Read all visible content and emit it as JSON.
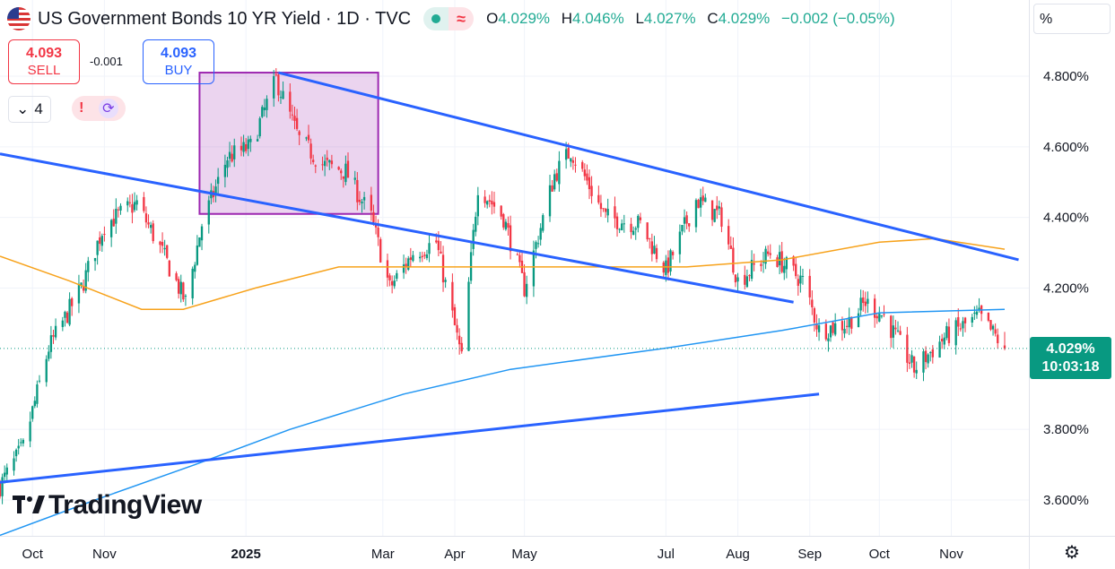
{
  "header": {
    "title": "US Government Bonds 10 YR Yield · 1D · TVC",
    "ohlc": [
      {
        "key": "O",
        "value": "4.029%"
      },
      {
        "key": "H",
        "value": "4.046%"
      },
      {
        "key": "L",
        "value": "4.027%"
      },
      {
        "key": "C",
        "value": "4.029%"
      }
    ],
    "change": "−0.002 (−0.05%)",
    "flag_icon": "us-flag-icon",
    "market_status_icon": "market-open-dot-icon",
    "delayed_icon": "approx-icon"
  },
  "trade": {
    "sell_price": "4.093",
    "sell_label": "SELL",
    "buy_price": "4.093",
    "buy_label": "BUY",
    "spread": "-0.001"
  },
  "indicators": {
    "collapse_count": "4",
    "chevron_icon": "chevron-down-icon",
    "alert_icon": "exclamation-icon",
    "refresh_icon": "refresh-icon"
  },
  "price_axis": {
    "unit_label": "%"
  },
  "last_price": {
    "value": "4.029%",
    "countdown": "10:03:18"
  },
  "logo_text": "TradingView",
  "settings_icon": "settings-icon",
  "colors": {
    "up": "#089981",
    "down": "#f23645",
    "ma_orange": "#f7a21b",
    "ma_blue": "#2196f3",
    "trendline": "#2962ff",
    "box_border": "#9c27b0",
    "box_fill": "rgba(156,39,176,0.2)"
  },
  "chart_data": {
    "type": "candlestick",
    "title": "",
    "xlabel": "",
    "ylabel": "",
    "y_unit": "%",
    "ylim": [
      3.48,
      4.92
    ],
    "x_range": [
      "2024-09-17",
      "2025-11-24"
    ],
    "x_ticks": [
      {
        "date": "2024-10-01",
        "label": "Oct"
      },
      {
        "date": "2024-11-01",
        "label": "Nov"
      },
      {
        "date": "2025-01-01",
        "label": "2025",
        "bold": true
      },
      {
        "date": "2025-03-01",
        "label": "Mar"
      },
      {
        "date": "2025-04-01",
        "label": "Apr"
      },
      {
        "date": "2025-05-01",
        "label": "May"
      },
      {
        "date": "2025-07-01",
        "label": "Jul"
      },
      {
        "date": "2025-08-01",
        "label": "Aug"
      },
      {
        "date": "2025-09-01",
        "label": "Sep"
      },
      {
        "date": "2025-10-01",
        "label": "Oct"
      },
      {
        "date": "2025-11-01",
        "label": "Nov"
      }
    ],
    "y_ticks": [
      {
        "value": 4.8,
        "label": "4.800%"
      },
      {
        "value": 4.6,
        "label": "4.600%"
      },
      {
        "value": 4.4,
        "label": "4.400%"
      },
      {
        "value": 4.2,
        "label": "4.200%"
      },
      {
        "value": 3.8,
        "label": "3.800%"
      },
      {
        "value": 3.6,
        "label": "3.600%"
      }
    ],
    "last_value": 4.029,
    "close_anchors": [
      [
        "2024-09-17",
        3.64
      ],
      [
        "2024-09-27",
        3.75
      ],
      [
        "2024-10-08",
        4.03
      ],
      [
        "2024-10-22",
        4.2
      ],
      [
        "2024-11-01",
        4.38
      ],
      [
        "2024-11-15",
        4.44
      ],
      [
        "2024-11-26",
        4.3
      ],
      [
        "2024-12-06",
        4.16
      ],
      [
        "2024-12-13",
        4.38
      ],
      [
        "2024-12-24",
        4.57
      ],
      [
        "2025-01-03",
        4.6
      ],
      [
        "2025-01-14",
        4.79
      ],
      [
        "2025-01-24",
        4.62
      ],
      [
        "2025-02-03",
        4.55
      ],
      [
        "2025-02-13",
        4.53
      ],
      [
        "2025-02-24",
        4.4
      ],
      [
        "2025-03-04",
        4.2
      ],
      [
        "2025-03-14",
        4.3
      ],
      [
        "2025-03-24",
        4.33
      ],
      [
        "2025-04-04",
        4.0
      ],
      [
        "2025-04-11",
        4.49
      ],
      [
        "2025-04-22",
        4.4
      ],
      [
        "2025-05-01",
        4.2
      ],
      [
        "2025-05-14",
        4.52
      ],
      [
        "2025-05-21",
        4.59
      ],
      [
        "2025-06-05",
        4.4
      ],
      [
        "2025-06-20",
        4.38
      ],
      [
        "2025-07-01",
        4.25
      ],
      [
        "2025-07-14",
        4.45
      ],
      [
        "2025-07-25",
        4.4
      ],
      [
        "2025-08-01",
        4.22
      ],
      [
        "2025-08-15",
        4.3
      ],
      [
        "2025-08-29",
        4.22
      ],
      [
        "2025-09-05",
        4.08
      ],
      [
        "2025-09-17",
        4.1
      ],
      [
        "2025-09-25",
        4.16
      ],
      [
        "2025-10-03",
        4.12
      ],
      [
        "2025-10-16",
        3.97
      ],
      [
        "2025-10-29",
        4.06
      ],
      [
        "2025-11-13",
        4.12
      ],
      [
        "2025-11-24",
        4.03
      ]
    ],
    "moving_averages": [
      {
        "color": "#f7a21b",
        "points": [
          [
            "2024-09-17",
            4.29
          ],
          [
            "2024-10-17",
            4.22
          ],
          [
            "2024-11-17",
            4.14
          ],
          [
            "2024-12-05",
            4.14
          ],
          [
            "2025-01-05",
            4.2
          ],
          [
            "2025-02-10",
            4.26
          ],
          [
            "2025-03-10",
            4.26
          ],
          [
            "2025-05-10",
            4.26
          ],
          [
            "2025-07-10",
            4.26
          ],
          [
            "2025-08-20",
            4.28
          ],
          [
            "2025-10-01",
            4.33
          ],
          [
            "2025-10-25",
            4.34
          ],
          [
            "2025-11-24",
            4.31
          ]
        ]
      },
      {
        "color": "#2196f3",
        "points": [
          [
            "2024-09-17",
            3.5
          ],
          [
            "2024-10-28",
            3.6
          ],
          [
            "2024-12-10",
            3.7
          ],
          [
            "2025-01-20",
            3.8
          ],
          [
            "2025-03-10",
            3.9
          ],
          [
            "2025-04-25",
            3.97
          ],
          [
            "2025-07-01",
            4.03
          ],
          [
            "2025-08-20",
            4.08
          ],
          [
            "2025-10-01",
            4.13
          ],
          [
            "2025-11-24",
            4.14
          ]
        ]
      }
    ],
    "drawings": {
      "trendlines": [
        {
          "from": [
            "2024-09-17",
            4.58
          ],
          "to": [
            "2025-08-25",
            4.16
          ]
        },
        {
          "from": [
            "2025-01-15",
            4.81
          ],
          "to": [
            "2025-11-30",
            4.28
          ]
        },
        {
          "from": [
            "2024-09-17",
            3.65
          ],
          "to": [
            "2025-09-05",
            3.9
          ]
        }
      ],
      "rectangle": {
        "from": [
          "2024-12-12",
          4.81
        ],
        "to": [
          "2025-02-27",
          4.41
        ]
      }
    }
  }
}
